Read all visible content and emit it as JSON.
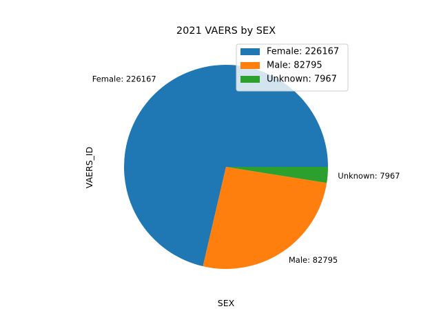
{
  "chart_data": {
    "type": "pie",
    "title": "2021 VAERS by SEX",
    "xlabel": "SEX",
    "ylabel": "VAERS_ID",
    "start_angle_deg": 0,
    "direction": "counterclockwise",
    "legend_position": "upper-right",
    "slices": [
      {
        "label": "Female: 226167",
        "category": "Female",
        "value": 226167,
        "color": "#1f77b4"
      },
      {
        "label": "Male: 82795",
        "category": "Male",
        "value": 82795,
        "color": "#ff7f0e"
      },
      {
        "label": "Unknown: 7967",
        "category": "Unknown",
        "value": 7967,
        "color": "#2ca02c"
      }
    ]
  }
}
